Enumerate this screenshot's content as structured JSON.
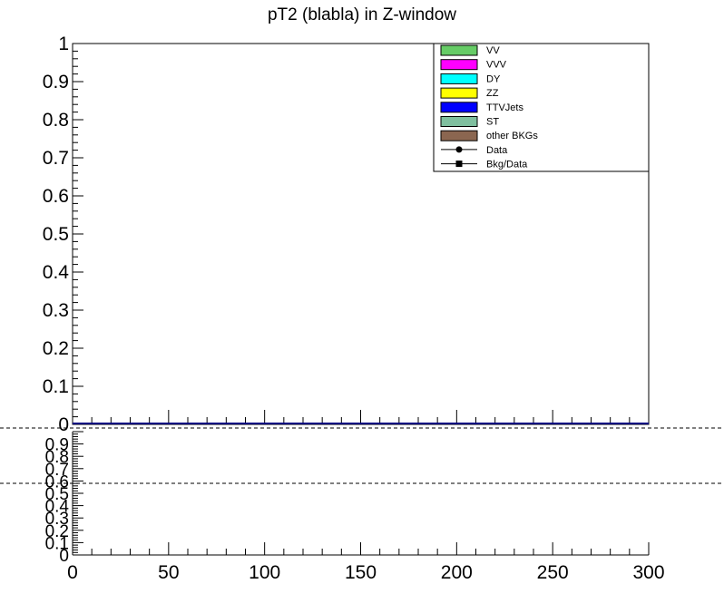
{
  "chart_data": {
    "type": "bar",
    "title": "pT2 (blabla) in Z-window",
    "main_panel": {
      "ylim": [
        0,
        1
      ],
      "ytick_labels": [
        "0",
        "0.1",
        "0.2",
        "0.3",
        "0.4",
        "0.5",
        "0.6",
        "0.7",
        "0.8",
        "0.9",
        "1"
      ]
    },
    "ratio_panel": {
      "ylim": [
        0,
        1
      ],
      "ytick_labels": [
        "0",
        "0.1",
        "0.2",
        "0.3",
        "0.4",
        "0.5",
        "0.6",
        "0.7",
        "0.8",
        "0.9"
      ]
    },
    "xlim": [
      0,
      300
    ],
    "xtick_labels": [
      "0",
      "50",
      "100",
      "150",
      "200",
      "250",
      "300"
    ],
    "legend": {
      "placement": "top-right",
      "entries": [
        {
          "label": "VV",
          "color": "#66cc66",
          "marker": "box"
        },
        {
          "label": "VVV",
          "color": "#ff00ff",
          "marker": "box"
        },
        {
          "label": "DY",
          "color": "#00ffff",
          "marker": "box"
        },
        {
          "label": "ZZ",
          "color": "#ffff00",
          "marker": "box"
        },
        {
          "label": "TTVJets",
          "color": "#0000ff",
          "marker": "box"
        },
        {
          "label": "ST",
          "color": "#7fbf9f",
          "marker": "box"
        },
        {
          "label": "other BKGs",
          "color": "#8b6650",
          "marker": "box"
        },
        {
          "label": "Data",
          "color": "#000000",
          "marker": "circle"
        },
        {
          "label": "Bkg/Data",
          "color": "#000000",
          "marker": "square"
        }
      ]
    },
    "series": []
  }
}
